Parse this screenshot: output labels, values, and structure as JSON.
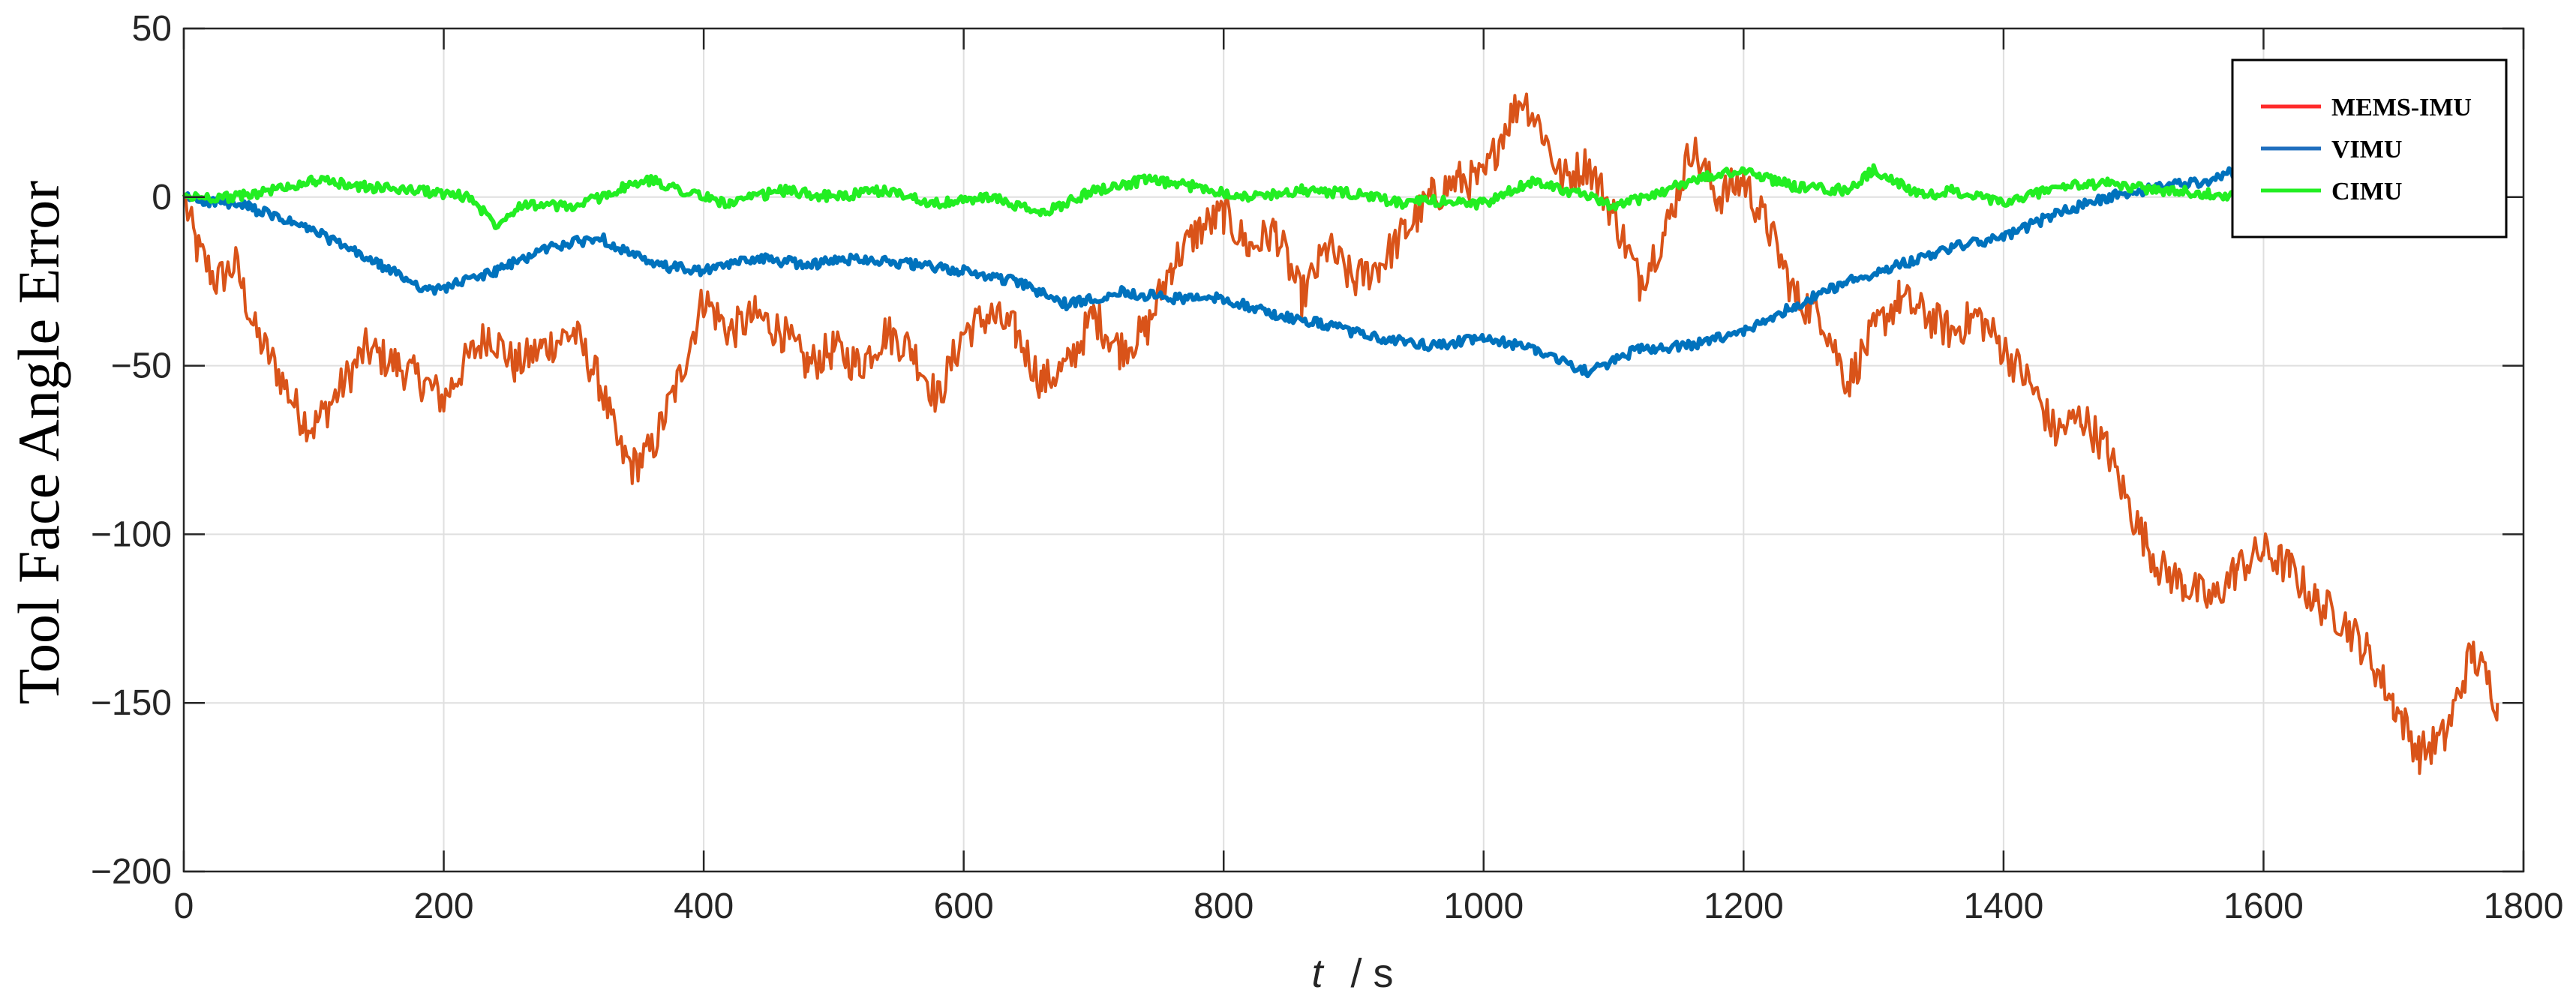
{
  "chart_data": {
    "type": "line",
    "title": "",
    "xlabel": {
      "italic": "t",
      "unit": "/ s"
    },
    "ylabel": "Tool Face Angle Error",
    "xlim": [
      0,
      1800
    ],
    "ylim": [
      -200,
      50
    ],
    "xticks": [
      0,
      200,
      400,
      600,
      800,
      1000,
      1200,
      1400,
      1600,
      1800
    ],
    "yticks": [
      50,
      0,
      -50,
      -100,
      -150,
      -200
    ],
    "xtick_labels": [
      "0",
      "200",
      "400",
      "600",
      "800",
      "1000",
      "1200",
      "1400",
      "1600",
      "1800"
    ],
    "ytick_labels": [
      "50",
      "0",
      "−50",
      "−100",
      "−150",
      "−200"
    ],
    "grid": true,
    "legend": {
      "position": "top-right",
      "line_colors": [
        "#ff2a2a",
        "#1f6fbf",
        "#22ee22"
      ]
    },
    "series": [
      {
        "name": "MEMS-IMU",
        "color": "#d95319",
        "noise": 6,
        "x": [
          0,
          10,
          25,
          40,
          55,
          70,
          90,
          100,
          115,
          140,
          165,
          185,
          200,
          215,
          235,
          255,
          275,
          300,
          320,
          335,
          345,
          360,
          380,
          400,
          420,
          440,
          460,
          480,
          500,
          520,
          540,
          560,
          580,
          600,
          620,
          640,
          660,
          680,
          700,
          720,
          740,
          760,
          780,
          800,
          820,
          840,
          860,
          880,
          900,
          920,
          940,
          960,
          980,
          1000,
          1015,
          1030,
          1045,
          1060,
          1080,
          1100,
          1120,
          1140,
          1160,
          1180,
          1200,
          1220,
          1240,
          1260,
          1280,
          1300,
          1320,
          1340,
          1360,
          1380,
          1400,
          1420,
          1440,
          1460,
          1480,
          1500,
          1520,
          1540,
          1560,
          1580,
          1600,
          1620,
          1640,
          1660,
          1680,
          1700,
          1720,
          1740,
          1760,
          1775,
          1780
        ],
        "values": [
          0,
          -15,
          -25,
          -20,
          -40,
          -50,
          -65,
          -68,
          -60,
          -45,
          -50,
          -55,
          -60,
          -50,
          -40,
          -50,
          -45,
          -40,
          -55,
          -75,
          -80,
          -75,
          -55,
          -30,
          -40,
          -35,
          -40,
          -50,
          -45,
          -50,
          -40,
          -45,
          -60,
          -40,
          -35,
          -40,
          -55,
          -50,
          -35,
          -45,
          -40,
          -20,
          -10,
          -5,
          -15,
          -10,
          -30,
          -15,
          -25,
          -20,
          -10,
          0,
          5,
          5,
          20,
          30,
          20,
          5,
          10,
          -5,
          -25,
          -10,
          15,
          0,
          5,
          -10,
          -30,
          -35,
          -55,
          -40,
          -30,
          -35,
          -40,
          -35,
          -45,
          -55,
          -70,
          -65,
          -75,
          -95,
          -110,
          -115,
          -120,
          -110,
          -105,
          -110,
          -120,
          -125,
          -135,
          -150,
          -165,
          -160,
          -135,
          -145,
          -150
        ]
      },
      {
        "name": "VIMU",
        "color": "#0072bd",
        "noise": 1.5,
        "x": [
          0,
          50,
          100,
          150,
          190,
          240,
          280,
          320,
          360,
          400,
          440,
          480,
          520,
          560,
          600,
          640,
          680,
          720,
          760,
          800,
          840,
          880,
          920,
          960,
          1000,
          1040,
          1080,
          1120,
          1160,
          1200,
          1240,
          1280,
          1320,
          1360,
          1400,
          1440,
          1480,
          1520,
          1560,
          1580
        ],
        "values": [
          0,
          -3,
          -10,
          -20,
          -28,
          -22,
          -15,
          -12,
          -20,
          -22,
          -18,
          -20,
          -18,
          -20,
          -22,
          -25,
          -32,
          -28,
          -30,
          -30,
          -35,
          -38,
          -42,
          -44,
          -42,
          -45,
          -52,
          -45,
          -44,
          -40,
          -32,
          -25,
          -20,
          -15,
          -12,
          -5,
          0,
          3,
          5,
          8
        ]
      },
      {
        "name": "CIMU",
        "color": "#22ee22",
        "noise": 1.5,
        "x": [
          0,
          40,
          80,
          100,
          140,
          180,
          220,
          240,
          260,
          300,
          340,
          360,
          400,
          420,
          460,
          500,
          540,
          580,
          620,
          660,
          700,
          740,
          780,
          820,
          860,
          900,
          940,
          960,
          1000,
          1040,
          1080,
          1100,
          1140,
          1160,
          1200,
          1240,
          1280,
          1300,
          1340,
          1360,
          1400,
          1440,
          1480,
          1520,
          1560,
          1600
        ],
        "values": [
          0,
          0,
          3,
          5,
          3,
          2,
          0,
          -8,
          -2,
          -3,
          3,
          5,
          0,
          -2,
          2,
          0,
          2,
          -2,
          0,
          -5,
          2,
          5,
          3,
          0,
          2,
          1,
          -2,
          -1,
          -2,
          5,
          0,
          -3,
          2,
          5,
          8,
          3,
          2,
          8,
          0,
          2,
          -2,
          3,
          4,
          2,
          1,
          0
        ]
      }
    ]
  }
}
